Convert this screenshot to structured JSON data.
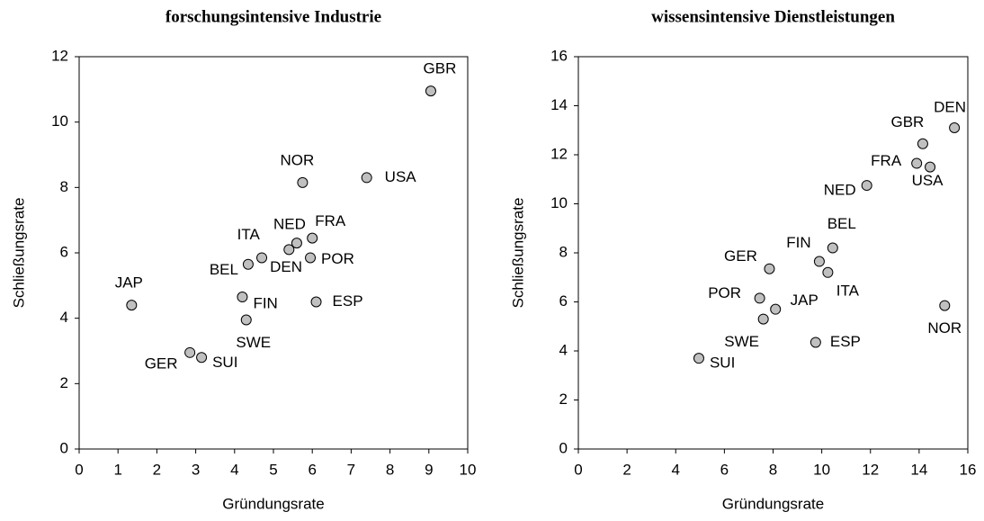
{
  "chart_data": [
    {
      "type": "scatter",
      "title": "forschungsintensive Industrie",
      "xlabel": "Gründungsrate",
      "ylabel": "Schließungsrate",
      "xlim": [
        0,
        10
      ],
      "xticks": [
        0,
        1,
        2,
        3,
        4,
        5,
        6,
        7,
        8,
        9,
        10
      ],
      "ylim": [
        0,
        12
      ],
      "yticks": [
        0,
        2,
        4,
        6,
        8,
        10,
        12
      ],
      "color": "#c0c0c0",
      "labels": [
        "GBR",
        "USA",
        "NOR",
        "FRA",
        "NED",
        "ITA",
        "DEN",
        "POR",
        "BEL",
        "JAP",
        "FIN",
        "ESP",
        "SWE",
        "GER",
        "SUI"
      ],
      "x": [
        9.05,
        7.4,
        5.75,
        6.0,
        5.6,
        5.4,
        4.7,
        5.95,
        4.35,
        1.35,
        4.2,
        6.1,
        4.3,
        2.85,
        3.15
      ],
      "values": [
        10.95,
        8.3,
        8.15,
        6.45,
        6.3,
        6.1,
        5.85,
        5.85,
        5.65,
        4.4,
        4.65,
        4.5,
        3.95,
        2.95,
        2.8
      ]
    },
    {
      "type": "scatter",
      "title": "wissensintensive Dienstleistungen",
      "xlabel": "Gründungsrate",
      "ylabel": "Schließungsrate",
      "xlim": [
        0,
        16
      ],
      "xticks": [
        0,
        2,
        4,
        6,
        8,
        10,
        12,
        14,
        16
      ],
      "ylim": [
        0,
        16
      ],
      "yticks": [
        0,
        2,
        4,
        6,
        8,
        10,
        12,
        14,
        16
      ],
      "color": "#c0c0c0",
      "labels": [
        "DEN",
        "GBR",
        "FRA",
        "USA",
        "NED",
        "BEL",
        "FIN",
        "ITA",
        "GER",
        "POR",
        "JAP",
        "SWE",
        "ESP",
        "NOR",
        "SUI"
      ],
      "x": [
        15.45,
        14.15,
        13.9,
        14.45,
        11.85,
        10.45,
        9.9,
        10.25,
        7.85,
        7.45,
        8.1,
        7.6,
        9.75,
        15.05,
        4.95
      ],
      "values": [
        13.1,
        12.45,
        11.65,
        11.5,
        10.75,
        8.2,
        7.65,
        7.2,
        7.35,
        6.15,
        5.7,
        5.3,
        4.35,
        5.85,
        3.7
      ]
    }
  ]
}
